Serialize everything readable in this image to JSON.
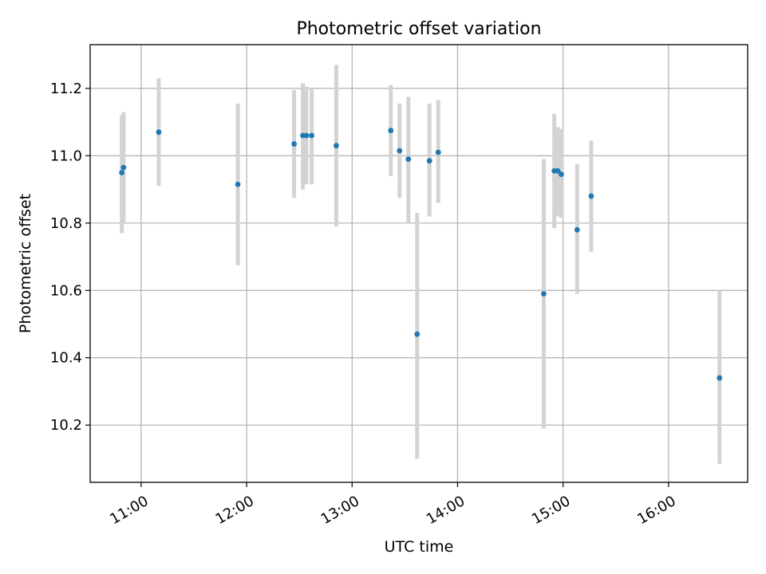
{
  "chart_data": {
    "type": "scatter",
    "title": "Photometric offset variation",
    "xlabel": "UTC time",
    "ylabel": "Photometric offset",
    "xlim": [
      "10:31",
      "16:45"
    ],
    "ylim": [
      10.03,
      11.33
    ],
    "grid": true,
    "x_ticks": [
      "11:00",
      "12:00",
      "13:00",
      "14:00",
      "15:00",
      "16:00"
    ],
    "y_ticks": [
      10.2,
      10.4,
      10.6,
      10.8,
      11.0,
      11.2
    ],
    "y_tick_labels": [
      "10.2",
      "10.4",
      "10.6",
      "10.8",
      "11.0",
      "11.2"
    ],
    "colors": {
      "point": "#1f77b4",
      "errorbar": "#d3d3d3",
      "grid": "#b0b0b0"
    },
    "series": [
      {
        "points": [
          {
            "x": "10:49",
            "y": 10.95,
            "lo": 10.77,
            "hi": 11.12
          },
          {
            "x": "10:50",
            "y": 10.965,
            "lo": 10.8,
            "hi": 11.13
          },
          {
            "x": "11:10",
            "y": 11.07,
            "lo": 10.91,
            "hi": 11.23
          },
          {
            "x": "11:55",
            "y": 10.915,
            "lo": 10.675,
            "hi": 11.155
          },
          {
            "x": "12:27",
            "y": 11.035,
            "lo": 10.875,
            "hi": 11.195
          },
          {
            "x": "12:32",
            "y": 11.06,
            "lo": 10.9,
            "hi": 11.215
          },
          {
            "x": "12:34",
            "y": 11.06,
            "lo": 10.915,
            "hi": 11.205
          },
          {
            "x": "12:37",
            "y": 11.06,
            "lo": 10.915,
            "hi": 11.2
          },
          {
            "x": "12:51",
            "y": 11.03,
            "lo": 10.79,
            "hi": 11.27
          },
          {
            "x": "13:22",
            "y": 11.075,
            "lo": 10.94,
            "hi": 11.21
          },
          {
            "x": "13:27",
            "y": 11.015,
            "lo": 10.875,
            "hi": 11.155
          },
          {
            "x": "13:32",
            "y": 10.99,
            "lo": 10.8,
            "hi": 11.175
          },
          {
            "x": "13:37",
            "y": 10.47,
            "lo": 10.1,
            "hi": 10.83
          },
          {
            "x": "13:44",
            "y": 10.985,
            "lo": 10.82,
            "hi": 11.155
          },
          {
            "x": "13:49",
            "y": 11.01,
            "lo": 10.86,
            "hi": 11.165
          },
          {
            "x": "14:49",
            "y": 10.59,
            "lo": 10.19,
            "hi": 10.99
          },
          {
            "x": "14:55",
            "y": 10.955,
            "lo": 10.785,
            "hi": 11.125
          },
          {
            "x": "14:57",
            "y": 10.955,
            "lo": 10.82,
            "hi": 11.085
          },
          {
            "x": "14:59",
            "y": 10.945,
            "lo": 10.815,
            "hi": 11.08
          },
          {
            "x": "15:08",
            "y": 10.78,
            "lo": 10.59,
            "hi": 10.975
          },
          {
            "x": "15:16",
            "y": 10.88,
            "lo": 10.715,
            "hi": 11.045
          },
          {
            "x": "16:29",
            "y": 10.34,
            "lo": 10.085,
            "hi": 10.6
          }
        ]
      }
    ]
  }
}
